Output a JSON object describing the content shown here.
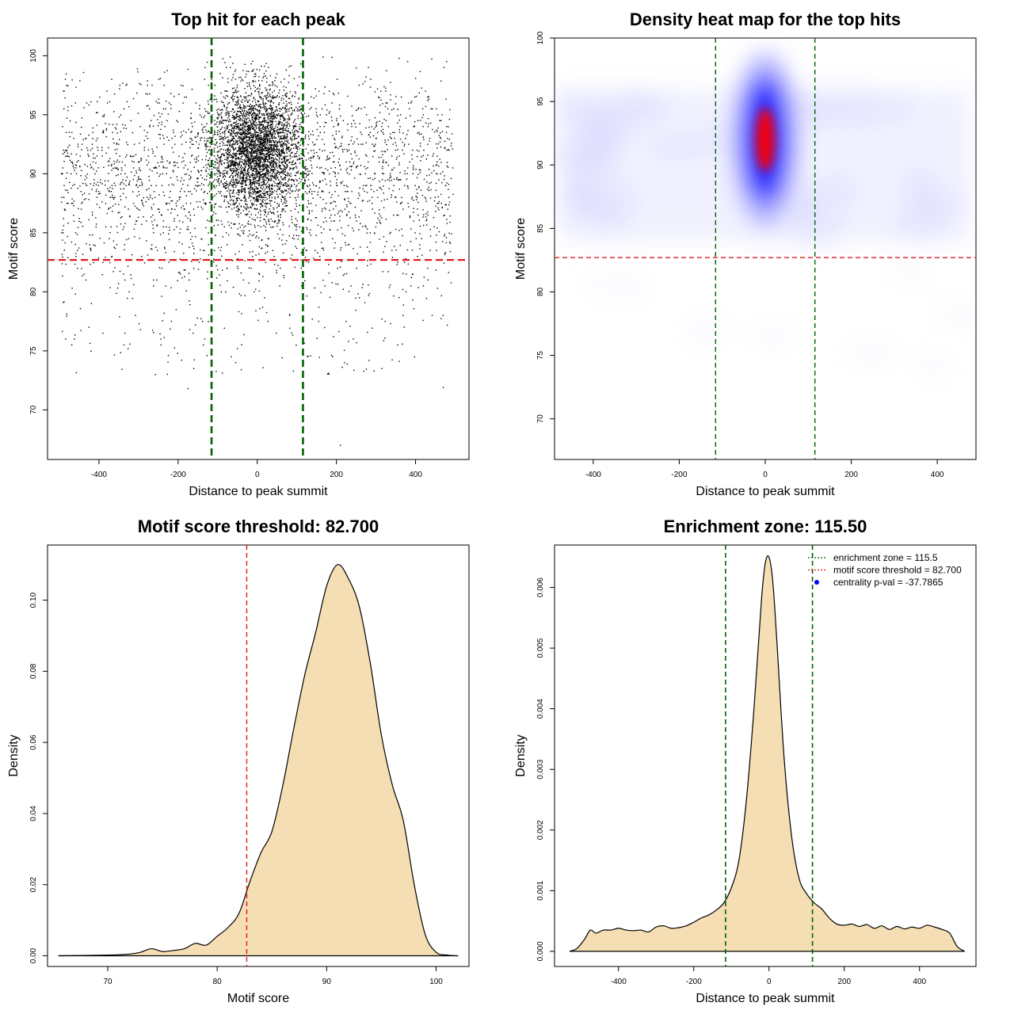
{
  "chart_data": [
    {
      "type": "scatter",
      "title": "Top hit for each peak",
      "xlabel": "Distance to peak summit",
      "ylabel": "Motif score",
      "xlim": [
        -530,
        535
      ],
      "ylim": [
        65.8,
        101.5
      ],
      "xticks": [
        -400,
        -200,
        0,
        200,
        400
      ],
      "yticks": [
        70,
        75,
        80,
        85,
        90,
        95,
        100
      ],
      "point_color": "#000000",
      "hline": {
        "y": 82.7,
        "color": "#e31a1c"
      },
      "vlines": {
        "x": [
          -115.5,
          115.5
        ],
        "color": "#006400"
      },
      "points": {
        "n_background": 2600,
        "n_center": 3400,
        "center_x_range": [
          -150,
          150
        ],
        "center_score_peak": 92,
        "x_range": [
          -495,
          495
        ],
        "score_range": [
          66.8,
          99.9
        ]
      }
    },
    {
      "type": "heatmap",
      "title": "Density heat map for the top hits",
      "xlabel": "Distance to peak summit",
      "ylabel": "Motif score",
      "xlim": [
        -490,
        490
      ],
      "ylim": [
        66.8,
        100
      ],
      "xticks": [
        -400,
        -200,
        0,
        200,
        400
      ],
      "yticks": [
        70,
        75,
        80,
        85,
        90,
        95,
        100
      ],
      "colors": [
        "#ffffff",
        "#0000ff",
        "#ff0000"
      ],
      "hotspot": {
        "x": 0,
        "y": 92
      },
      "hline": {
        "y": 82.7,
        "color": "#e31a1c"
      },
      "vlines": {
        "x": [
          -115.5,
          115.5
        ],
        "color": "#006400"
      }
    },
    {
      "type": "area",
      "title": "Motif score threshold: 82.700",
      "xlabel": "Motif score",
      "ylabel": "Density",
      "xlim": [
        64.5,
        103
      ],
      "ylim": [
        -0.003,
        0.1155
      ],
      "xticks": [
        70,
        80,
        90,
        100
      ],
      "yticks": [
        0.0,
        0.02,
        0.04,
        0.06,
        0.08,
        0.1
      ],
      "ytick_labels": [
        "0.00",
        "0.02",
        "0.04",
        "0.06",
        "0.08",
        "0.10"
      ],
      "fill": "#f5deb3",
      "vline": {
        "x": 82.7,
        "color": "#e31a1c"
      },
      "x": [
        65.5,
        70,
        72,
        73,
        74,
        75,
        76,
        77,
        78,
        79,
        80,
        81,
        82,
        83,
        84,
        85,
        86,
        87,
        88,
        89,
        90,
        91,
        92,
        93,
        94,
        95,
        96,
        97,
        98,
        99,
        100,
        101,
        102
      ],
      "y": [
        0,
        0.0002,
        0.0005,
        0.001,
        0.002,
        0.0012,
        0.0015,
        0.002,
        0.0035,
        0.003,
        0.0055,
        0.008,
        0.012,
        0.021,
        0.029,
        0.035,
        0.048,
        0.064,
        0.079,
        0.091,
        0.104,
        0.11,
        0.106,
        0.098,
        0.082,
        0.062,
        0.048,
        0.038,
        0.02,
        0.006,
        0.001,
        0.0002,
        0
      ]
    },
    {
      "type": "area",
      "title": "Enrichment zone: 115.50",
      "xlabel": "Distance to peak summit",
      "ylabel": "Density",
      "xlim": [
        -570,
        550
      ],
      "ylim": [
        -0.00025,
        0.0067
      ],
      "xticks": [
        -400,
        -200,
        0,
        200,
        400
      ],
      "yticks": [
        0,
        0.001,
        0.002,
        0.003,
        0.004,
        0.005,
        0.006
      ],
      "ytick_labels": [
        "0.000",
        "0.001",
        "0.002",
        "0.003",
        "0.004",
        "0.005",
        "0.006"
      ],
      "fill": "#f5deb3",
      "vlines": {
        "x": [
          -115.5,
          115.5
        ],
        "color": "#006400"
      },
      "x": [
        -530,
        -510,
        -490,
        -475,
        -460,
        -440,
        -420,
        -400,
        -380,
        -360,
        -340,
        -320,
        -300,
        -280,
        -260,
        -240,
        -220,
        -200,
        -180,
        -160,
        -140,
        -120,
        -100,
        -80,
        -60,
        -40,
        -20,
        -10,
        0,
        10,
        20,
        40,
        60,
        80,
        100,
        120,
        140,
        160,
        180,
        200,
        220,
        240,
        260,
        280,
        300,
        320,
        340,
        360,
        380,
        400,
        420,
        440,
        460,
        480,
        500,
        520
      ],
      "y": [
        0,
        5e-05,
        0.0002,
        0.00035,
        0.0003,
        0.00035,
        0.00035,
        0.00038,
        0.00035,
        0.00034,
        0.00035,
        0.00032,
        0.0004,
        0.00042,
        0.00038,
        0.00039,
        0.00042,
        0.00048,
        0.00055,
        0.0006,
        0.00068,
        0.0008,
        0.00105,
        0.0015,
        0.0025,
        0.004,
        0.0058,
        0.0064,
        0.0065,
        0.0061,
        0.0052,
        0.0032,
        0.0019,
        0.0012,
        0.00095,
        0.0008,
        0.0007,
        0.00055,
        0.00045,
        0.00043,
        0.00045,
        0.00041,
        0.00044,
        0.00038,
        0.00042,
        0.00036,
        0.00041,
        0.00037,
        0.0004,
        0.00038,
        0.00043,
        0.0004,
        0.00036,
        0.0003,
        8e-05,
        0
      ],
      "legend": {
        "position": "top-right",
        "entries": [
          {
            "label": "enrichment zone = 115.5",
            "color": "#006400",
            "kind": "line"
          },
          {
            "label": "motif score threshold = 82.700",
            "color": "#e31a1c",
            "kind": "line"
          },
          {
            "label": "centrality p-val = -37.7865",
            "color": "#0000ff",
            "kind": "point"
          }
        ]
      }
    }
  ]
}
